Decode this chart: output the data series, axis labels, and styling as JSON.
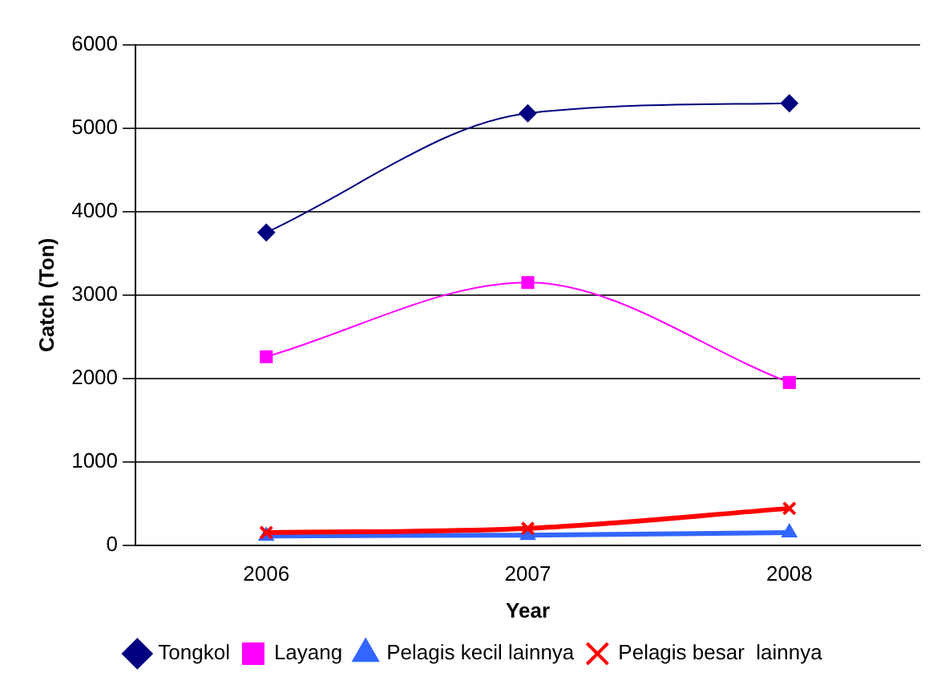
{
  "chart_data": {
    "type": "line",
    "xlabel": "Year",
    "ylabel": "Catch (Ton)",
    "categories": [
      "2006",
      "2007",
      "2008"
    ],
    "ylim": [
      0,
      6000
    ],
    "yticks": [
      0,
      1000,
      2000,
      3000,
      4000,
      5000,
      6000
    ],
    "grid": "y",
    "legend": "bottom",
    "series": [
      {
        "name": "Tongkol",
        "color": "#000080",
        "marker": "diamond",
        "values": [
          3750,
          5180,
          5300
        ]
      },
      {
        "name": "Layang",
        "color": "#ff00ff",
        "marker": "square",
        "values": [
          2260,
          3150,
          1950
        ]
      },
      {
        "name": "Pelagis kecil lainnya",
        "color": "#3366ff",
        "marker": "triangle",
        "values": [
          110,
          120,
          150
        ]
      },
      {
        "name": "Pelagis besar  lainnya",
        "color": "#ff0000",
        "marker": "cross",
        "values": [
          150,
          200,
          440
        ]
      }
    ]
  }
}
